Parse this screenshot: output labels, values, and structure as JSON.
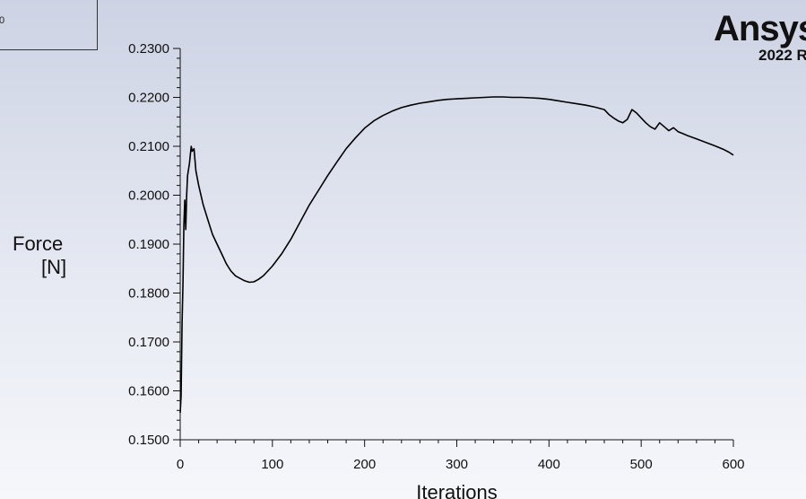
{
  "legend": {
    "text": "0"
  },
  "logo": {
    "name": "Ansys",
    "version": "2022 R"
  },
  "chart_data": {
    "type": "line",
    "title": "",
    "xlabel": "Iterations",
    "ylabel_lines": [
      "Force",
      "[N]"
    ],
    "xlim": [
      0,
      600
    ],
    "ylim": [
      0.15,
      0.23
    ],
    "xticks": [
      0,
      100,
      200,
      300,
      400,
      500,
      600
    ],
    "xtick_labels": [
      "0",
      "100",
      "200",
      "300",
      "400",
      "500",
      "600"
    ],
    "yticks": [
      0.15,
      0.16,
      0.17,
      0.18,
      0.19,
      0.2,
      0.21,
      0.22,
      0.23
    ],
    "ytick_labels": [
      "0.1500",
      "0.1600",
      "0.1700",
      "0.1800",
      "0.1900",
      "0.2000",
      "0.2100",
      "0.2200",
      "0.2300"
    ],
    "grid": false,
    "series": [
      {
        "x": [
          0,
          1,
          2,
          3,
          4,
          5,
          6,
          7,
          8,
          10,
          12,
          13,
          15,
          17,
          20,
          25,
          30,
          35,
          40,
          45,
          50,
          55,
          60,
          65,
          70,
          75,
          80,
          85,
          90,
          95,
          100,
          110,
          120,
          130,
          140,
          150,
          160,
          170,
          180,
          190,
          200,
          210,
          220,
          230,
          240,
          250,
          260,
          270,
          280,
          290,
          300,
          310,
          320,
          330,
          340,
          350,
          360,
          370,
          380,
          390,
          400,
          410,
          420,
          430,
          440,
          450,
          460,
          465,
          470,
          475,
          480,
          485,
          490,
          495,
          500,
          505,
          510,
          515,
          520,
          525,
          530,
          535,
          540,
          545,
          550,
          560,
          570,
          580,
          590,
          595,
          600
        ],
        "values": [
          0.1555,
          0.159,
          0.174,
          0.182,
          0.194,
          0.199,
          0.193,
          0.2,
          0.204,
          0.2065,
          0.21,
          0.209,
          0.2095,
          0.205,
          0.202,
          0.198,
          0.195,
          0.192,
          0.19,
          0.188,
          0.186,
          0.1845,
          0.1835,
          0.183,
          0.1825,
          0.1822,
          0.1823,
          0.1828,
          0.1835,
          0.1845,
          0.1855,
          0.188,
          0.191,
          0.1945,
          0.198,
          0.201,
          0.204,
          0.2068,
          0.2095,
          0.2117,
          0.2137,
          0.2152,
          0.2163,
          0.2172,
          0.2179,
          0.2184,
          0.2188,
          0.2191,
          0.2194,
          0.2196,
          0.2197,
          0.2198,
          0.2199,
          0.22,
          0.2201,
          0.2201,
          0.22,
          0.22,
          0.2199,
          0.2198,
          0.2196,
          0.2193,
          0.219,
          0.2187,
          0.2184,
          0.218,
          0.2175,
          0.2165,
          0.2158,
          0.2152,
          0.2148,
          0.2155,
          0.2175,
          0.2168,
          0.2158,
          0.2148,
          0.214,
          0.2135,
          0.2148,
          0.214,
          0.2132,
          0.2138,
          0.213,
          0.2126,
          0.2122,
          0.2115,
          0.2108,
          0.2101,
          0.2093,
          0.2088,
          0.2082
        ]
      }
    ]
  }
}
